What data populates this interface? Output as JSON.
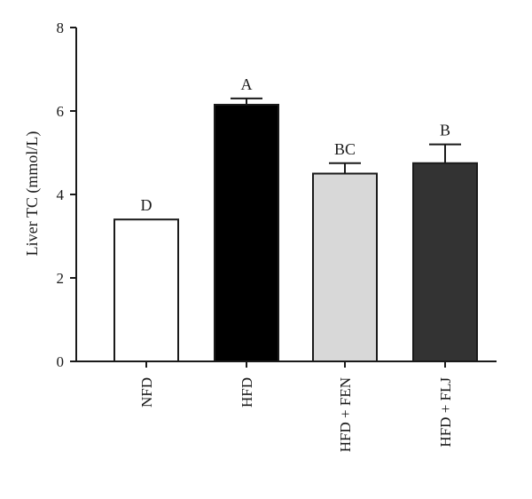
{
  "chart_data": {
    "type": "bar",
    "title": "",
    "xlabel": "",
    "ylabel": "Liver TC (mmol/L)",
    "ylim": [
      0,
      8
    ],
    "yticks": [
      0,
      2,
      4,
      6,
      8
    ],
    "grid": false,
    "categories": [
      "NFD",
      "HFD",
      "HFD + FEN",
      "HFD + FLJ"
    ],
    "values": [
      3.4,
      6.15,
      4.5,
      4.75
    ],
    "errors": [
      0.0,
      0.15,
      0.25,
      0.45
    ],
    "significance_labels": [
      "D",
      "A",
      "BC",
      "B"
    ],
    "bar_colors": [
      "#ffffff",
      "#000000",
      "#d8d8d8",
      "#333333"
    ]
  }
}
